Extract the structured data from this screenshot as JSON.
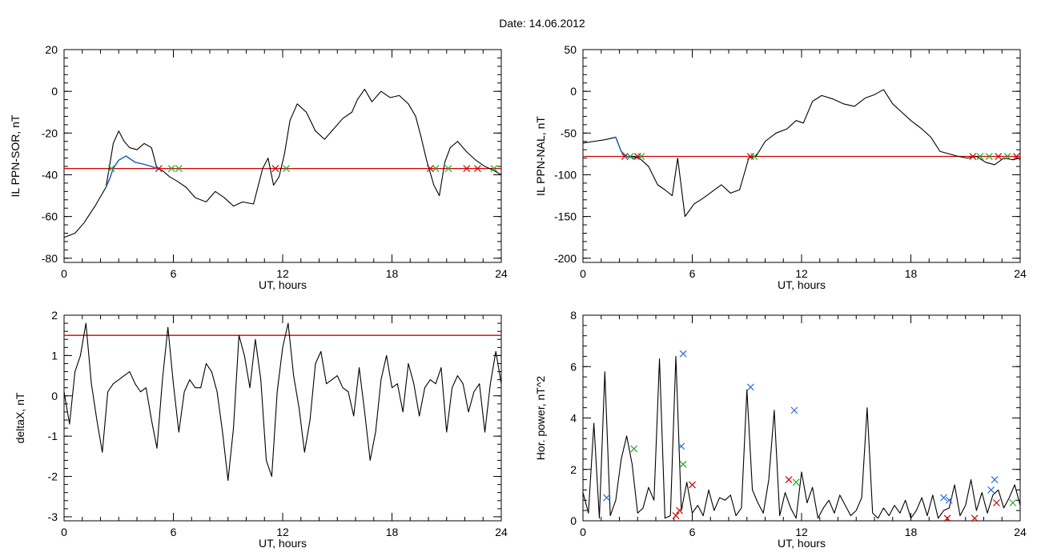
{
  "page": {
    "title": "Date:  14.06.2012"
  },
  "colors": {
    "axis": "#000000",
    "base": "#000000",
    "blue_trace": "#1f5fbf",
    "threshold": "#d40000",
    "marker_red": "#d40000",
    "marker_green": "#22aa22",
    "marker_blue": "#2a6de0"
  },
  "chart_data": [
    {
      "type": "line",
      "title": "",
      "xlabel": "UT, hours",
      "ylabel": "IL PPN-SOR, nT",
      "xlim": [
        0,
        24
      ],
      "ylim": [
        -82,
        20
      ],
      "xticks": [
        0,
        6,
        12,
        18,
        24
      ],
      "yticks": [
        20,
        0,
        -20,
        -40,
        -60,
        -80
      ],
      "xtick_labels": [
        "0",
        "6",
        "12",
        "18",
        "24"
      ],
      "ytick_labels": [
        "20",
        "0",
        "-20",
        "-40",
        "-60",
        "-80"
      ],
      "grid": false,
      "series": [
        {
          "style": "black",
          "x": [
            0,
            0.6,
            1.1,
            1.7,
            2.3,
            2.7,
            3.0,
            3.3,
            3.6,
            4.0,
            4.4,
            4.8,
            5.1,
            5.4,
            5.8,
            6.2,
            6.7,
            7.2,
            7.8,
            8.3,
            8.8,
            9.3,
            9.8,
            10.4,
            10.9,
            11.2,
            11.5,
            11.8,
            12.1,
            12.4,
            12.8,
            13.3,
            13.8,
            14.3,
            14.8,
            15.3,
            15.8,
            16.1,
            16.5,
            16.9,
            17.4,
            17.9,
            18.4,
            18.9,
            19.3,
            19.6,
            19.9,
            20.1,
            20.3,
            20.6,
            20.9,
            21.2,
            21.6,
            22.1,
            22.6,
            23.1,
            23.6,
            24.0
          ],
          "y": [
            -70,
            -68,
            -63,
            -55,
            -46,
            -25,
            -19,
            -24,
            -27,
            -28,
            -25,
            -27,
            -37,
            -38,
            -41,
            -43,
            -46,
            -51,
            -53,
            -48,
            -51,
            -55,
            -53,
            -54,
            -37,
            -32,
            -45,
            -41,
            -30,
            -14,
            -6,
            -10,
            -19,
            -23,
            -18,
            -13,
            -10,
            -4,
            1,
            -5,
            0,
            -3,
            -2,
            -6,
            -12,
            -22,
            -33,
            -39,
            -45,
            -50,
            -34,
            -27,
            -24,
            -29,
            -33,
            -36,
            -38,
            -40
          ]
        },
        {
          "style": "blue",
          "x": [
            2.3,
            2.5,
            2.7,
            3.0,
            3.4,
            3.9,
            4.4,
            4.8,
            5.1
          ],
          "y": [
            -46,
            -42,
            -37,
            -33,
            -31,
            -34,
            -35,
            -36,
            -37
          ]
        }
      ],
      "threshold": -37,
      "markers": [
        {
          "x": 2.6,
          "y": -37,
          "color": "green"
        },
        {
          "x": 5.2,
          "y": -37,
          "color": "red"
        },
        {
          "x": 5.9,
          "y": -37,
          "color": "green"
        },
        {
          "x": 6.3,
          "y": -37,
          "color": "green"
        },
        {
          "x": 11.6,
          "y": -37,
          "color": "red"
        },
        {
          "x": 12.2,
          "y": -37,
          "color": "green"
        },
        {
          "x": 20.1,
          "y": -37,
          "color": "red"
        },
        {
          "x": 20.4,
          "y": -37,
          "color": "green"
        },
        {
          "x": 21.1,
          "y": -37,
          "color": "green"
        },
        {
          "x": 22.1,
          "y": -37,
          "color": "red"
        },
        {
          "x": 22.7,
          "y": -37,
          "color": "red"
        },
        {
          "x": 23.6,
          "y": -37,
          "color": "green"
        }
      ]
    },
    {
      "type": "line",
      "title": "",
      "xlabel": "UT, hours",
      "ylabel": "IL PPN-NAL, nT",
      "xlim": [
        0,
        24
      ],
      "ylim": [
        -205,
        50
      ],
      "xticks": [
        0,
        6,
        12,
        18,
        24
      ],
      "yticks": [
        50,
        0,
        -50,
        -100,
        -150,
        -200
      ],
      "xtick_labels": [
        "0",
        "6",
        "12",
        "18",
        "24"
      ],
      "ytick_labels": [
        "50",
        "0",
        "-50",
        "-100",
        "-150",
        "-200"
      ],
      "grid": false,
      "series": [
        {
          "style": "black",
          "x": [
            0,
            0.6,
            1.2,
            1.8,
            2.1,
            2.4,
            2.8,
            3.2,
            3.6,
            4.1,
            4.5,
            4.9,
            5.2,
            5.6,
            6.1,
            6.6,
            7.1,
            7.6,
            8.1,
            8.6,
            9.1,
            9.5,
            10.0,
            10.6,
            11.2,
            11.7,
            12.1,
            12.6,
            13.1,
            13.7,
            14.3,
            14.9,
            15.5,
            16.0,
            16.5,
            17.0,
            17.5,
            18.0,
            18.6,
            19.1,
            19.6,
            20.1,
            20.6,
            21.1,
            21.6,
            22.1,
            22.6,
            23.1,
            23.6,
            24.0
          ],
          "y": [
            -62,
            -60,
            -58,
            -55,
            -72,
            -78,
            -78,
            -82,
            -90,
            -112,
            -118,
            -125,
            -80,
            -150,
            -135,
            -128,
            -120,
            -112,
            -122,
            -118,
            -80,
            -78,
            -60,
            -50,
            -45,
            -35,
            -38,
            -12,
            -5,
            -9,
            -15,
            -18,
            -8,
            -4,
            2,
            -15,
            -25,
            -35,
            -45,
            -55,
            -72,
            -75,
            -78,
            -80,
            -78,
            -85,
            -88,
            -80,
            -82,
            -80
          ]
        },
        {
          "style": "blue",
          "x": [
            1.8,
            2.1,
            2.4,
            2.8,
            3.2
          ],
          "y": [
            -55,
            -72,
            -78,
            -80,
            -78
          ]
        }
      ],
      "threshold": -78,
      "markers": [
        {
          "x": 2.3,
          "y": -78,
          "color": "red"
        },
        {
          "x": 2.6,
          "y": -78,
          "color": "green"
        },
        {
          "x": 3.0,
          "y": -78,
          "color": "red"
        },
        {
          "x": 3.2,
          "y": -78,
          "color": "green"
        },
        {
          "x": 9.2,
          "y": -78,
          "color": "red"
        },
        {
          "x": 9.4,
          "y": -78,
          "color": "green"
        },
        {
          "x": 21.4,
          "y": -78,
          "color": "red"
        },
        {
          "x": 21.8,
          "y": -78,
          "color": "green"
        },
        {
          "x": 22.3,
          "y": -78,
          "color": "green"
        },
        {
          "x": 22.8,
          "y": -78,
          "color": "red"
        },
        {
          "x": 23.3,
          "y": -78,
          "color": "green"
        },
        {
          "x": 23.8,
          "y": -78,
          "color": "red"
        }
      ]
    },
    {
      "type": "line",
      "title": "",
      "xlabel": "UT, hours",
      "ylabel": "deltaX, nT",
      "xlim": [
        0,
        24
      ],
      "ylim": [
        -3.1,
        2
      ],
      "xticks": [
        0,
        6,
        12,
        18,
        24
      ],
      "yticks": [
        2,
        1,
        0,
        -1,
        -2,
        -3
      ],
      "xtick_labels": [
        "0",
        "6",
        "12",
        "18",
        "24"
      ],
      "ytick_labels": [
        "2",
        "1",
        "0",
        "-1",
        "-2",
        "-3"
      ],
      "grid": false,
      "series": [
        {
          "style": "black",
          "x": [
            0,
            0.3,
            0.6,
            0.9,
            1.2,
            1.5,
            1.8,
            2.1,
            2.4,
            2.7,
            3.0,
            3.3,
            3.6,
            3.9,
            4.2,
            4.5,
            4.8,
            5.1,
            5.4,
            5.7,
            6.0,
            6.3,
            6.6,
            6.9,
            7.2,
            7.5,
            7.8,
            8.1,
            8.4,
            8.7,
            9.0,
            9.3,
            9.6,
            9.9,
            10.2,
            10.5,
            10.8,
            11.1,
            11.4,
            11.7,
            12.0,
            12.3,
            12.6,
            12.9,
            13.2,
            13.5,
            13.8,
            14.1,
            14.4,
            14.7,
            15.0,
            15.3,
            15.6,
            15.9,
            16.2,
            16.5,
            16.8,
            17.1,
            17.4,
            17.7,
            18.0,
            18.3,
            18.6,
            18.9,
            19.2,
            19.5,
            19.8,
            20.1,
            20.4,
            20.7,
            21.0,
            21.3,
            21.6,
            21.9,
            22.2,
            22.5,
            22.8,
            23.1,
            23.4,
            23.7,
            24.0
          ],
          "y": [
            0.1,
            -0.7,
            0.6,
            1.0,
            1.8,
            0.3,
            -0.6,
            -1.4,
            0.1,
            0.3,
            0.4,
            0.5,
            0.6,
            0.3,
            0.1,
            0.2,
            -0.6,
            -1.3,
            0.4,
            1.7,
            0.3,
            -0.9,
            0.1,
            0.4,
            0.2,
            0.2,
            0.8,
            0.6,
            0.1,
            -0.9,
            -2.1,
            -0.8,
            1.5,
            1.0,
            0.2,
            1.4,
            0.4,
            -1.6,
            -2.0,
            0.1,
            1.2,
            1.8,
            0.5,
            -0.3,
            -1.4,
            -0.6,
            0.8,
            1.1,
            0.3,
            0.4,
            0.5,
            0.2,
            0.1,
            -0.5,
            0.7,
            -0.4,
            -1.6,
            -0.9,
            0.4,
            1.0,
            0.2,
            0.3,
            -0.4,
            0.8,
            0.3,
            -0.5,
            0.2,
            0.4,
            0.3,
            0.7,
            -0.9,
            0.2,
            0.5,
            0.3,
            -0.4,
            0.1,
            0.3,
            -0.9,
            0.3,
            1.1,
            0.3
          ]
        }
      ],
      "threshold": 1.5,
      "markers": []
    },
    {
      "type": "line",
      "title": "",
      "xlabel": "UT, hours",
      "ylabel": "Hor. power, nT^2",
      "xlim": [
        0,
        24
      ],
      "ylim": [
        0,
        8
      ],
      "xticks": [
        0,
        6,
        12,
        18,
        24
      ],
      "yticks": [
        8,
        6,
        4,
        2,
        0
      ],
      "xtick_labels": [
        "0",
        "6",
        "12",
        "18",
        "24"
      ],
      "ytick_labels": [
        "8",
        "6",
        "4",
        "2",
        "0"
      ],
      "grid": false,
      "series": [
        {
          "style": "black",
          "x": [
            0,
            0.3,
            0.6,
            0.9,
            1.2,
            1.5,
            1.8,
            2.1,
            2.4,
            2.7,
            3.0,
            3.3,
            3.6,
            3.9,
            4.2,
            4.5,
            4.8,
            5.1,
            5.4,
            5.7,
            6.0,
            6.3,
            6.6,
            6.9,
            7.2,
            7.5,
            7.8,
            8.1,
            8.4,
            8.7,
            9.0,
            9.3,
            9.6,
            9.9,
            10.2,
            10.5,
            10.8,
            11.1,
            11.4,
            11.7,
            12.0,
            12.3,
            12.6,
            12.9,
            13.2,
            13.5,
            13.8,
            14.1,
            14.4,
            14.7,
            15.0,
            15.3,
            15.6,
            15.9,
            16.2,
            16.5,
            16.8,
            17.1,
            17.4,
            17.7,
            18.0,
            18.3,
            18.6,
            18.9,
            19.2,
            19.5,
            19.8,
            20.1,
            20.4,
            20.7,
            21.0,
            21.3,
            21.6,
            21.9,
            22.2,
            22.5,
            22.8,
            23.1,
            23.4,
            23.7,
            24.0
          ],
          "y": [
            1.1,
            0.3,
            3.8,
            0.1,
            5.8,
            0.2,
            0.8,
            2.4,
            3.3,
            2.2,
            0.3,
            0.5,
            1.3,
            0.8,
            6.3,
            0.1,
            0.2,
            6.4,
            0.4,
            1.5,
            0.3,
            0.6,
            0.2,
            1.2,
            0.4,
            0.9,
            0.8,
            1.0,
            0.2,
            0.5,
            5.1,
            1.2,
            0.7,
            0.3,
            1.6,
            4.3,
            0.2,
            1.1,
            0.5,
            0.1,
            1.9,
            0.7,
            1.3,
            0.1,
            0.5,
            0.8,
            0.3,
            1.0,
            0.6,
            0.2,
            0.4,
            0.9,
            4.4,
            0.3,
            0.1,
            0.5,
            0.2,
            0.6,
            0.3,
            0.8,
            0.1,
            0.4,
            0.9,
            0.2,
            1.0,
            0.1,
            0.4,
            0.5,
            1.4,
            0.2,
            0.6,
            1.6,
            0.4,
            1.1,
            0.3,
            1.0,
            1.2,
            0.5,
            0.9,
            1.4,
            0.6
          ]
        }
      ],
      "markers": [
        {
          "x": 1.3,
          "y": 0.9,
          "color": "blue"
        },
        {
          "x": 2.8,
          "y": 2.8,
          "color": "green"
        },
        {
          "x": 5.1,
          "y": 0.2,
          "color": "red"
        },
        {
          "x": 5.3,
          "y": 0.4,
          "color": "red"
        },
        {
          "x": 5.4,
          "y": 2.9,
          "color": "blue"
        },
        {
          "x": 5.5,
          "y": 6.5,
          "color": "blue"
        },
        {
          "x": 5.5,
          "y": 2.2,
          "color": "green"
        },
        {
          "x": 6.0,
          "y": 1.4,
          "color": "red"
        },
        {
          "x": 9.2,
          "y": 5.2,
          "color": "blue"
        },
        {
          "x": 11.3,
          "y": 1.6,
          "color": "red"
        },
        {
          "x": 11.6,
          "y": 4.3,
          "color": "blue"
        },
        {
          "x": 11.7,
          "y": 1.5,
          "color": "green"
        },
        {
          "x": 19.8,
          "y": 0.9,
          "color": "blue"
        },
        {
          "x": 20.0,
          "y": 0.1,
          "color": "red"
        },
        {
          "x": 20.1,
          "y": 0.8,
          "color": "blue"
        },
        {
          "x": 21.5,
          "y": 0.1,
          "color": "red"
        },
        {
          "x": 22.4,
          "y": 1.2,
          "color": "blue"
        },
        {
          "x": 22.6,
          "y": 1.6,
          "color": "blue"
        },
        {
          "x": 22.7,
          "y": 0.7,
          "color": "red"
        },
        {
          "x": 23.6,
          "y": 0.7,
          "color": "green"
        }
      ]
    }
  ]
}
